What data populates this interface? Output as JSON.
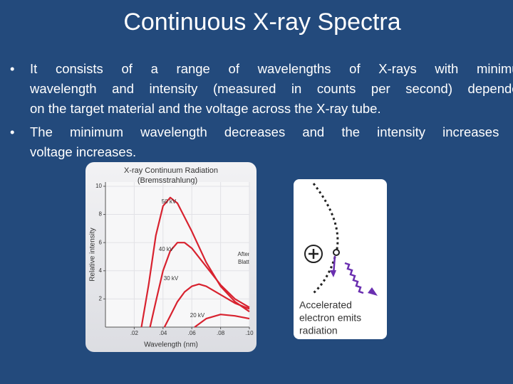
{
  "title": "Continuous X-ray Spectra",
  "bullets": [
    [
      "It consists of a range of wavelengths of X-rays with minimum",
      "wavelength and intensity (measured in counts per second) dependent",
      "on the target material and the voltage across the X-ray tube."
    ],
    [
      "The minimum wavelength decreases and the intensity increases as",
      "voltage increases."
    ]
  ],
  "chart_data": {
    "type": "line",
    "title": "X-ray Continuum Radiation",
    "subtitle": "(Bremsstrahlung)",
    "x_label": "Wavelength (nm)",
    "y_label": "Relative intensity",
    "xlim": [
      0,
      0.1
    ],
    "ylim": [
      0,
      10.3
    ],
    "xticks": [
      {
        "value": 0.02,
        "label": ".02"
      },
      {
        "value": 0.04,
        "label": ".04"
      },
      {
        "value": 0.06,
        "label": ".06"
      },
      {
        "value": 0.08,
        "label": ".08"
      },
      {
        "value": 0.1,
        "label": ".10"
      }
    ],
    "yticks": [
      2,
      4,
      6,
      8,
      10
    ],
    "grid": true,
    "annotations": [
      "After",
      "Blatt"
    ],
    "series": [
      {
        "name": "50 kV",
        "color": "#d8222f",
        "x": [
          0.025,
          0.03,
          0.035,
          0.04,
          0.045,
          0.05,
          0.06,
          0.07,
          0.08,
          0.09,
          0.1
        ],
        "values": [
          0,
          3,
          6.5,
          8.6,
          9.2,
          8.8,
          6.8,
          4.6,
          2.9,
          1.8,
          1.1
        ]
      },
      {
        "name": "40 kV",
        "color": "#d8222f",
        "x": [
          0.031,
          0.035,
          0.04,
          0.045,
          0.05,
          0.055,
          0.06,
          0.07,
          0.08,
          0.09,
          0.1
        ],
        "values": [
          0,
          1.8,
          4,
          5.4,
          6,
          6,
          5.6,
          4.3,
          3,
          2,
          1.4
        ]
      },
      {
        "name": "30 kV",
        "color": "#d8222f",
        "x": [
          0.041,
          0.045,
          0.05,
          0.055,
          0.06,
          0.065,
          0.07,
          0.08,
          0.09,
          0.1
        ],
        "values": [
          0,
          0.8,
          1.8,
          2.5,
          2.9,
          3.05,
          2.9,
          2.3,
          1.7,
          1.3
        ]
      },
      {
        "name": "20 kV",
        "color": "#d8222f",
        "x": [
          0.062,
          0.07,
          0.08,
          0.09,
          0.1
        ],
        "values": [
          0,
          0.6,
          0.9,
          0.8,
          0.6
        ]
      }
    ]
  },
  "diagram": {
    "caption_lines": [
      "Accelerated",
      "electron emits",
      "radiation"
    ]
  }
}
